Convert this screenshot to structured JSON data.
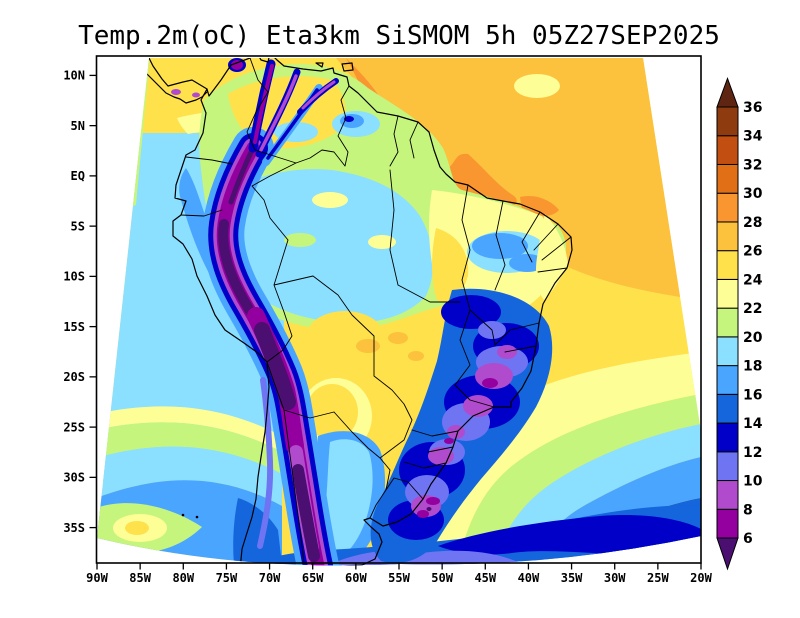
{
  "title": "Temp.2m(oC) Eta3km SiSMOM 5h 05Z27SEP2025",
  "axes": {
    "x_labels": [
      "90W",
      "85W",
      "80W",
      "75W",
      "70W",
      "65W",
      "60W",
      "55W",
      "50W",
      "45W",
      "40W",
      "35W",
      "30W",
      "25W",
      "20W"
    ],
    "y_labels": [
      "10N",
      "5N",
      "EQ",
      "5S",
      "10S",
      "15S",
      "20S",
      "25S",
      "30S",
      "35S"
    ]
  },
  "colorbar": {
    "levels": [
      6,
      8,
      10,
      12,
      14,
      16,
      18,
      20,
      22,
      24,
      26,
      28,
      30,
      32,
      34,
      36
    ],
    "colors": [
      "#4B0E71",
      "#93009F",
      "#B04BCD",
      "#6F74F3",
      "#0000C8",
      "#1565DC",
      "#4AA5FF",
      "#8BDFFF",
      "#C6F57E",
      "#FEFE96",
      "#FFE14B",
      "#FCC13D",
      "#F99630",
      "#E06F15",
      "#C24E12",
      "#8F3B10",
      "#5E2612"
    ]
  },
  "map": {
    "background": "#FFFFFF",
    "outline_color": "#000000"
  },
  "chart_data": {
    "type": "heatmap",
    "title": "Temp.2m(oC) Eta3km SiSMOM 5h 05Z27SEP2025",
    "units": "oC",
    "x_ticks": [
      "90W",
      "85W",
      "80W",
      "75W",
      "70W",
      "65W",
      "60W",
      "55W",
      "50W",
      "45W",
      "40W",
      "35W",
      "30W",
      "25W",
      "20W"
    ],
    "y_ticks": [
      "10N",
      "5N",
      "EQ",
      "5S",
      "10S",
      "15S",
      "20S",
      "25S",
      "30S",
      "35S"
    ],
    "contour_levels": [
      6,
      8,
      10,
      12,
      14,
      16,
      18,
      20,
      22,
      24,
      26,
      28,
      30,
      32,
      34,
      36
    ],
    "palette": [
      "#4B0E71",
      "#93009F",
      "#B04BCD",
      "#6F74F3",
      "#0000C8",
      "#1565DC",
      "#4AA5FF",
      "#8BDFFF",
      "#C6F57E",
      "#FEFE96",
      "#FFE14B",
      "#FCC13D",
      "#F99630",
      "#E06F15",
      "#C24E12",
      "#8F3B10",
      "#5E2612"
    ],
    "legend_position": "right",
    "notes": "Filled contour 2m temperature over South America; warm (26-30oC) tropical North Atlantic, cold (<6-10oC) Andes ridge and Southeast Brazil/Uruguay, 12-16oC bands over the southern oceans"
  }
}
